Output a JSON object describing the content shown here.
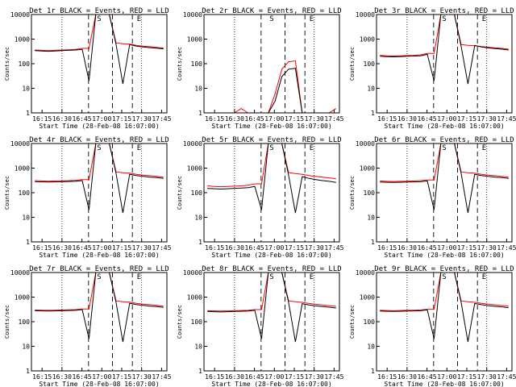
{
  "chart_data": [
    {
      "type": "line",
      "title": "Det 1r  BLACK = Events, RED = LLD",
      "xlabel": "Start Time (28-Feb-08 16:07:00)",
      "ylabel": "Counts/sec",
      "x_ticks": [
        "16:15",
        "16:30",
        "16:45",
        "17:00",
        "17:15",
        "17:30",
        "17:45"
      ],
      "y_ticks": [
        "1",
        "10",
        "100",
        "1000",
        "10000"
      ],
      "ylim": [
        1,
        10000
      ],
      "scale_y": "log",
      "markers": [
        {
          "label": "S",
          "time": "16:58"
        },
        {
          "label": "E",
          "time": "17:28"
        }
      ],
      "profile": "saturated",
      "series": [
        {
          "name": "Events",
          "color": "#000000",
          "values": [
            340,
            330,
            320,
            330,
            340,
            350,
            360,
            380,
            20,
            10000,
            10000,
            10000,
            600,
            15,
            600,
            520,
            480,
            450,
            430,
            400
          ]
        },
        {
          "name": "LLD",
          "color": "#ff0000",
          "values": [
            360,
            350,
            340,
            350,
            360,
            370,
            380,
            420,
            420,
            10000,
            10000,
            10000,
            700,
            650,
            620,
            560,
            520,
            490,
            460,
            430
          ]
        }
      ]
    },
    {
      "type": "line",
      "title": "Det 2r  BLACK = Events, RED = LLD",
      "xlabel": "Start Time (28-Feb-08 16:07:00)",
      "ylabel": "Counts/sec",
      "x_ticks": [
        "16:15",
        "16:30",
        "16:45",
        "17:00",
        "17:15",
        "17:30",
        "17:45"
      ],
      "y_ticks": [
        "1",
        "10",
        "100",
        "1000",
        "10000"
      ],
      "ylim": [
        1,
        10000
      ],
      "scale_y": "log",
      "markers": [
        {
          "label": "S",
          "time": "16:58"
        },
        {
          "label": "E",
          "time": "17:28"
        }
      ],
      "profile": "weak",
      "series": [
        {
          "name": "Events",
          "color": "#000000",
          "values": [
            1,
            1,
            1,
            1,
            1,
            1,
            1,
            1,
            1,
            1,
            3,
            30,
            60,
            65,
            1,
            1,
            1,
            1,
            1,
            1
          ]
        },
        {
          "name": "LLD",
          "color": "#ff0000",
          "values": [
            1,
            1,
            1,
            1,
            1,
            1.5,
            1,
            1,
            1,
            1,
            6,
            60,
            120,
            130,
            1,
            1,
            1,
            1,
            1,
            1.5
          ]
        }
      ]
    },
    {
      "type": "line",
      "title": "Det 3r  BLACK = Events, RED = LLD",
      "xlabel": "Start Time (28-Feb-08 16:07:00)",
      "ylabel": "Counts/sec",
      "x_ticks": [
        "16:15",
        "16:30",
        "16:45",
        "17:00",
        "17:15",
        "17:30",
        "17:45"
      ],
      "y_ticks": [
        "1",
        "10",
        "100",
        "1000",
        "10000"
      ],
      "ylim": [
        1,
        10000
      ],
      "scale_y": "log",
      "markers": [
        {
          "label": "S",
          "time": "16:58"
        },
        {
          "label": "E",
          "time": "17:28"
        }
      ],
      "profile": "saturated",
      "series": [
        {
          "name": "Events",
          "color": "#000000",
          "values": [
            200,
            195,
            190,
            195,
            200,
            205,
            210,
            240,
            20,
            10000,
            10000,
            10000,
            500,
            15,
            550,
            480,
            440,
            410,
            390,
            360
          ]
        },
        {
          "name": "LLD",
          "color": "#ff0000",
          "values": [
            220,
            210,
            205,
            210,
            215,
            220,
            230,
            260,
            260,
            10000,
            10000,
            10000,
            600,
            560,
            540,
            500,
            470,
            440,
            420,
            390
          ]
        }
      ]
    },
    {
      "type": "line",
      "title": "Det 4r  BLACK = Events, RED = LLD",
      "xlabel": "Start Time (28-Feb-08 16:07:00)",
      "ylabel": "Counts/sec",
      "x_ticks": [
        "16:15",
        "16:30",
        "16:45",
        "17:00",
        "17:15",
        "17:30",
        "17:45"
      ],
      "y_ticks": [
        "1",
        "10",
        "100",
        "1000",
        "10000"
      ],
      "ylim": [
        1,
        10000
      ],
      "scale_y": "log",
      "markers": [
        {
          "label": "S",
          "time": "16:58"
        },
        {
          "label": "E",
          "time": "17:28"
        }
      ],
      "profile": "saturated",
      "series": [
        {
          "name": "Events",
          "color": "#000000",
          "values": [
            280,
            275,
            270,
            275,
            280,
            285,
            290,
            310,
            20,
            10000,
            10000,
            10000,
            600,
            15,
            560,
            500,
            460,
            430,
            410,
            380
          ]
        },
        {
          "name": "LLD",
          "color": "#ff0000",
          "values": [
            310,
            300,
            295,
            300,
            305,
            310,
            320,
            340,
            340,
            10000,
            10000,
            10000,
            700,
            650,
            620,
            560,
            520,
            490,
            460,
            430
          ]
        }
      ]
    },
    {
      "type": "line",
      "title": "Det 5r  BLACK = Events, RED = LLD",
      "xlabel": "Start Time (28-Feb-08 16:07:00)",
      "ylabel": "Counts/sec",
      "x_ticks": [
        "16:15",
        "16:30",
        "16:45",
        "17:00",
        "17:15",
        "17:30",
        "17:45"
      ],
      "y_ticks": [
        "1",
        "10",
        "100",
        "1000",
        "10000"
      ],
      "ylim": [
        1,
        10000
      ],
      "scale_y": "log",
      "markers": [
        {
          "label": "S",
          "time": "16:58"
        },
        {
          "label": "E",
          "time": "17:28"
        }
      ],
      "profile": "saturated",
      "series": [
        {
          "name": "Events",
          "color": "#000000",
          "values": [
            150,
            145,
            140,
            145,
            150,
            155,
            160,
            180,
            20,
            10000,
            10000,
            10000,
            500,
            15,
            450,
            380,
            340,
            310,
            290,
            260
          ]
        },
        {
          "name": "LLD",
          "color": "#ff0000",
          "values": [
            190,
            180,
            175,
            180,
            185,
            190,
            200,
            230,
            230,
            10000,
            10000,
            10000,
            650,
            600,
            560,
            500,
            460,
            430,
            400,
            370
          ]
        }
      ]
    },
    {
      "type": "line",
      "title": "Det 6r  BLACK = Events, RED = LLD",
      "xlabel": "Start Time (28-Feb-08 16:07:00)",
      "ylabel": "Counts/sec",
      "x_ticks": [
        "16:15",
        "16:30",
        "16:45",
        "17:00",
        "17:15",
        "17:30",
        "17:45"
      ],
      "y_ticks": [
        "1",
        "10",
        "100",
        "1000",
        "10000"
      ],
      "ylim": [
        1,
        10000
      ],
      "scale_y": "log",
      "markers": [
        {
          "label": "S",
          "time": "16:58"
        },
        {
          "label": "E",
          "time": "17:28"
        }
      ],
      "profile": "saturated",
      "series": [
        {
          "name": "Events",
          "color": "#000000",
          "values": [
            270,
            265,
            260,
            265,
            270,
            275,
            280,
            300,
            20,
            10000,
            10000,
            10000,
            600,
            15,
            560,
            500,
            460,
            430,
            410,
            380
          ]
        },
        {
          "name": "LLD",
          "color": "#ff0000",
          "values": [
            300,
            290,
            285,
            290,
            295,
            300,
            310,
            330,
            330,
            10000,
            10000,
            10000,
            700,
            650,
            620,
            560,
            520,
            490,
            460,
            430
          ]
        }
      ]
    },
    {
      "type": "line",
      "title": "Det 7r  BLACK = Events, RED = LLD",
      "xlabel": "Start Time (28-Feb-08 16:07:00)",
      "ylabel": "Counts/sec",
      "x_ticks": [
        "16:15",
        "16:30",
        "16:45",
        "17:00",
        "17:15",
        "17:30",
        "17:45"
      ],
      "y_ticks": [
        "1",
        "10",
        "100",
        "1000",
        "10000"
      ],
      "ylim": [
        1,
        10000
      ],
      "scale_y": "log",
      "markers": [
        {
          "label": "S",
          "time": "16:58"
        },
        {
          "label": "E",
          "time": "17:28"
        }
      ],
      "profile": "saturated",
      "series": [
        {
          "name": "Events",
          "color": "#000000",
          "values": [
            280,
            275,
            270,
            275,
            280,
            285,
            290,
            310,
            20,
            10000,
            10000,
            10000,
            600,
            15,
            560,
            500,
            460,
            430,
            410,
            380
          ]
        },
        {
          "name": "LLD",
          "color": "#ff0000",
          "values": [
            300,
            295,
            290,
            295,
            300,
            305,
            310,
            330,
            330,
            10000,
            10000,
            10000,
            700,
            650,
            620,
            560,
            520,
            490,
            460,
            430
          ]
        }
      ]
    },
    {
      "type": "line",
      "title": "Det 8r  BLACK = Events, RED = LLD",
      "xlabel": "Start Time (28-Feb-08 16:07:00)",
      "ylabel": "Counts/sec",
      "x_ticks": [
        "16:15",
        "16:30",
        "16:45",
        "17:00",
        "17:15",
        "17:30",
        "17:45"
      ],
      "y_ticks": [
        "1",
        "10",
        "100",
        "1000",
        "10000"
      ],
      "ylim": [
        1,
        10000
      ],
      "scale_y": "log",
      "markers": [
        {
          "label": "S",
          "time": "16:58"
        },
        {
          "label": "E",
          "time": "17:28"
        }
      ],
      "profile": "saturated",
      "series": [
        {
          "name": "Events",
          "color": "#000000",
          "values": [
            260,
            255,
            250,
            255,
            260,
            265,
            270,
            290,
            20,
            10000,
            10000,
            10000,
            600,
            15,
            540,
            480,
            440,
            410,
            390,
            360
          ]
        },
        {
          "name": "LLD",
          "color": "#ff0000",
          "values": [
            280,
            275,
            270,
            275,
            280,
            285,
            290,
            310,
            310,
            10000,
            10000,
            10000,
            700,
            650,
            610,
            550,
            510,
            480,
            450,
            420
          ]
        }
      ]
    },
    {
      "type": "line",
      "title": "Det 9r  BLACK = Events, RED = LLD",
      "xlabel": "Start Time (28-Feb-08 16:07:00)",
      "ylabel": "Counts/sec",
      "x_ticks": [
        "16:15",
        "16:30",
        "16:45",
        "17:00",
        "17:15",
        "17:30",
        "17:45"
      ],
      "y_ticks": [
        "1",
        "10",
        "100",
        "1000",
        "10000"
      ],
      "ylim": [
        1,
        10000
      ],
      "scale_y": "log",
      "markers": [
        {
          "label": "S",
          "time": "16:58"
        },
        {
          "label": "E",
          "time": "17:28"
        }
      ],
      "profile": "saturated",
      "series": [
        {
          "name": "Events",
          "color": "#000000",
          "values": [
            270,
            265,
            260,
            265,
            270,
            275,
            280,
            300,
            20,
            10000,
            10000,
            10000,
            600,
            15,
            550,
            490,
            450,
            420,
            400,
            370
          ]
        },
        {
          "name": "LLD",
          "color": "#ff0000",
          "values": [
            290,
            285,
            280,
            285,
            290,
            295,
            300,
            320,
            320,
            10000,
            10000,
            10000,
            700,
            650,
            615,
            555,
            515,
            485,
            455,
            425
          ]
        }
      ]
    }
  ]
}
